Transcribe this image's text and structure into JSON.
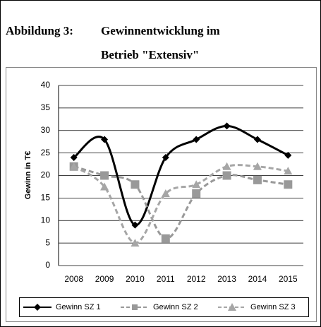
{
  "chart_data": {
    "type": "line",
    "figure_label": "Abbildung 3:",
    "title_lines": [
      "Gewinnentwicklung im",
      "Betrieb \"Extensiv\""
    ],
    "y_label": "Gewinn in T€",
    "categories": [
      "2008",
      "2009",
      "2010",
      "2011",
      "2012",
      "2013",
      "2014",
      "2015"
    ],
    "series": [
      {
        "name": "Gewinn SZ 1",
        "color": "#000000",
        "marker": "diamond",
        "line_style": "solid",
        "values": [
          24,
          28,
          9,
          24,
          28,
          31,
          28,
          24.5
        ]
      },
      {
        "name": "Gewinn SZ 2",
        "color": "#999999",
        "marker": "square",
        "line_style": "dashed",
        "values": [
          22,
          20,
          18,
          6,
          16,
          20,
          19,
          18
        ]
      },
      {
        "name": "Gewinn SZ 3",
        "color": "#a6a6a6",
        "marker": "triangle",
        "line_style": "dashed",
        "values": [
          22,
          17.5,
          5,
          16,
          18,
          22,
          22,
          21
        ]
      }
    ],
    "ylim": [
      0,
      40
    ],
    "yticks": [
      0,
      5,
      10,
      15,
      20,
      25,
      30,
      35,
      40
    ],
    "grid": true,
    "legend": "bottom"
  }
}
